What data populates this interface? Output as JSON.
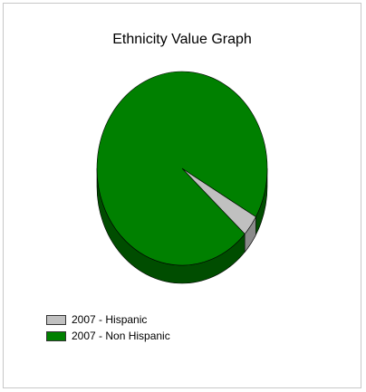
{
  "chart_data": {
    "type": "pie",
    "title": "Ethnicity Value Graph",
    "slices": [
      {
        "label": "2007 - Hispanic",
        "value": 3.5,
        "color": "#c0c0c0",
        "side_color": "#8a8a8a"
      },
      {
        "label": "2007 - Non Hispanic",
        "value": 96.5,
        "color": "#008000",
        "side_color": "#004d00"
      }
    ],
    "legend_position": "bottom-left",
    "three_d": true
  }
}
